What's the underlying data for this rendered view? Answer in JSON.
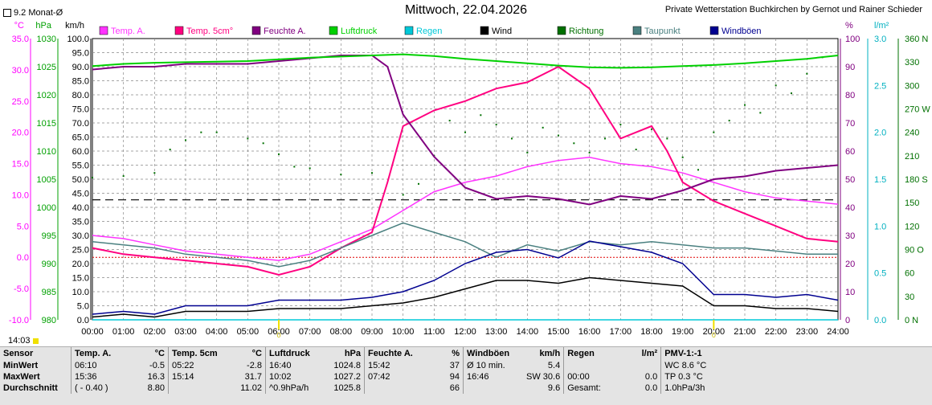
{
  "header": {
    "title": "Mittwoch, 22.04.2026",
    "credit": "Private Wetterstation Buchkirchen by Gernot und Rainer Schieder",
    "checkbox_label": "9.2 Monat-Ø",
    "current_time": "14:03"
  },
  "colors": {
    "temp_a": "#ff33ff",
    "temp_5cm": "#ff0080",
    "feuchte": "#800080",
    "luftdruck": "#00d000",
    "regen": "#00c8d8",
    "wind": "#000000",
    "richtung": "#007000",
    "taupunkt": "#4a8080",
    "windboeen": "#000090"
  },
  "chart_data": {
    "type": "line",
    "x_ticks": [
      "00:00",
      "01:00",
      "02:00",
      "03:00",
      "04:00",
      "05:00",
      "06:00",
      "07:00",
      "08:00",
      "09:00",
      "10:00",
      "11:00",
      "12:00",
      "13:00",
      "14:00",
      "15:00",
      "16:00",
      "17:00",
      "18:00",
      "19:00",
      "20:00",
      "21:00",
      "22:00",
      "23:00",
      "24:00"
    ],
    "axes": {
      "temp": {
        "unit": "°C",
        "ticks": [
          "35.0",
          "30.0",
          "25.0",
          "20.0",
          "15.0",
          "10.0",
          "5.0",
          "0.0",
          "-5.0",
          "-10.0"
        ],
        "range": [
          -10,
          35
        ]
      },
      "hpa": {
        "unit": "hPa",
        "ticks": [
          "1030",
          "1025",
          "1020",
          "1015",
          "1010",
          "1005",
          "1000",
          "995",
          "990",
          "985",
          "980"
        ],
        "range": [
          980,
          1030
        ]
      },
      "kmh": {
        "unit": "km/h",
        "ticks": [
          "100.0",
          "95.0",
          "90.0",
          "85.0",
          "80.0",
          "75.0",
          "70.0",
          "65.0",
          "60.0",
          "55.0",
          "50.0",
          "45.0",
          "40.0",
          "35.0",
          "30.0",
          "25.0",
          "20.0",
          "15.0",
          "10.0",
          "5.0",
          "0.0"
        ],
        "range": [
          0,
          100
        ]
      },
      "percent": {
        "unit": "%",
        "ticks": [
          "100",
          "90",
          "80",
          "70",
          "60",
          "50",
          "40",
          "30",
          "20",
          "10",
          "0"
        ],
        "range": [
          0,
          100
        ]
      },
      "rain": {
        "unit": "l/m²",
        "ticks": [
          "3.0",
          "2.5",
          "2.0",
          "1.5",
          "1.0",
          "0.5",
          "0.0"
        ],
        "range": [
          0,
          3
        ]
      },
      "dir": {
        "unit": "",
        "ticks": [
          "360 N",
          "330",
          "300",
          "270 W",
          "240",
          "210",
          "180 S",
          "150",
          "120",
          "90 O",
          "60",
          "30",
          "0 N"
        ],
        "range": [
          0,
          360
        ]
      }
    },
    "legend": [
      {
        "key": "temp_a",
        "label": "Temp. A."
      },
      {
        "key": "temp_5cm",
        "label": "Temp. 5cm°"
      },
      {
        "key": "feuchte",
        "label": "Feuchte A."
      },
      {
        "key": "luftdruck",
        "label": "Luftdruck"
      },
      {
        "key": "regen",
        "label": "Regen"
      },
      {
        "key": "wind",
        "label": "Wind"
      },
      {
        "key": "richtung",
        "label": "Richtung"
      },
      {
        "key": "taupunkt",
        "label": "Taupunkt"
      },
      {
        "key": "windboeen",
        "label": "Windböen"
      }
    ],
    "reference_lines": {
      "monthly_avg_temp": 9.2,
      "freezing": 0.0
    },
    "series": [
      {
        "key": "temp_a",
        "axis": "temp",
        "x": [
          0,
          1,
          2,
          3,
          4,
          5,
          6,
          7,
          8,
          9,
          10,
          11,
          12,
          13,
          14,
          15,
          16,
          17,
          18,
          19,
          20,
          21,
          22,
          23,
          24
        ],
        "y": [
          3.5,
          3.0,
          2.0,
          1.0,
          0.5,
          0.0,
          -0.5,
          0.5,
          2.5,
          4.5,
          7.5,
          10.5,
          12.0,
          13.0,
          14.5,
          15.5,
          16.0,
          15.0,
          14.5,
          13.5,
          12.0,
          10.5,
          9.5,
          9.0,
          8.5
        ]
      },
      {
        "key": "temp_5cm",
        "axis": "temp",
        "x": [
          0,
          1,
          2,
          3,
          4,
          5,
          6,
          7,
          8,
          9,
          9.5,
          10,
          11,
          12,
          13,
          14,
          15,
          16,
          17,
          18,
          18.5,
          19,
          20,
          21,
          22,
          23,
          24
        ],
        "y": [
          1.5,
          0.5,
          0.0,
          -0.5,
          -1.0,
          -1.5,
          -2.8,
          -1.5,
          1.5,
          4.0,
          12.0,
          21.0,
          23.5,
          25.0,
          27.0,
          28.0,
          30.5,
          27.0,
          19.0,
          21.0,
          17.0,
          12.0,
          9.0,
          7.0,
          5.0,
          3.0,
          2.5
        ]
      },
      {
        "key": "taupunkt",
        "axis": "temp",
        "x": [
          0,
          1,
          2,
          3,
          4,
          5,
          6,
          7,
          8,
          9,
          10,
          11,
          12,
          13,
          14,
          15,
          16,
          17,
          18,
          19,
          20,
          21,
          22,
          23,
          24
        ],
        "y": [
          2.5,
          2.0,
          1.5,
          0.5,
          0.0,
          -0.5,
          -1.5,
          -0.5,
          1.5,
          3.5,
          5.5,
          4.0,
          2.5,
          0.0,
          2.0,
          1.0,
          2.5,
          2.0,
          2.5,
          2.0,
          1.5,
          1.5,
          1.0,
          0.5,
          0.5
        ]
      },
      {
        "key": "feuchte",
        "axis": "percent",
        "x": [
          0,
          1,
          2,
          3,
          4,
          5,
          6,
          7,
          8,
          9,
          9.5,
          10,
          11,
          12,
          13,
          14,
          15,
          16,
          17,
          18,
          19,
          20,
          21,
          22,
          23,
          24
        ],
        "y": [
          89,
          90,
          90,
          91,
          91,
          91,
          92,
          93,
          94,
          94,
          90,
          73,
          58,
          47,
          43,
          44,
          43,
          41,
          44,
          43,
          46,
          50,
          51,
          53,
          54,
          55
        ]
      },
      {
        "key": "luftdruck",
        "axis": "hpa",
        "x": [
          0,
          1,
          2,
          3,
          4,
          5,
          6,
          7,
          8,
          9,
          10,
          11,
          12,
          13,
          14,
          15,
          16,
          17,
          18,
          19,
          20,
          21,
          22,
          23,
          24
        ],
        "y": [
          1025.1,
          1025.5,
          1025.7,
          1025.8,
          1025.9,
          1026.0,
          1026.3,
          1026.6,
          1026.8,
          1027.0,
          1027.2,
          1026.9,
          1026.4,
          1026.0,
          1025.6,
          1025.2,
          1024.9,
          1024.8,
          1024.9,
          1025.1,
          1025.3,
          1025.6,
          1026.0,
          1026.4,
          1027.0
        ]
      },
      {
        "key": "wind",
        "axis": "kmh",
        "x": [
          0,
          1,
          2,
          3,
          4,
          5,
          6,
          7,
          8,
          9,
          10,
          11,
          12,
          13,
          14,
          15,
          16,
          17,
          18,
          19,
          20,
          21,
          22,
          23,
          24
        ],
        "y": [
          1,
          2,
          1,
          3,
          3,
          3,
          4,
          4,
          4,
          5,
          6,
          8,
          11,
          14,
          14,
          13,
          15,
          14,
          13,
          12,
          5,
          5,
          4,
          4,
          3
        ]
      },
      {
        "key": "windboeen",
        "axis": "kmh",
        "x": [
          0,
          1,
          2,
          3,
          4,
          5,
          6,
          7,
          8,
          9,
          10,
          11,
          12,
          13,
          14,
          15,
          16,
          17,
          18,
          19,
          20,
          21,
          22,
          23,
          24
        ],
        "y": [
          2,
          3,
          2,
          5,
          5,
          5,
          7,
          7,
          7,
          8,
          10,
          14,
          20,
          24,
          25,
          22,
          28,
          26,
          24,
          20,
          9,
          9,
          8,
          9,
          7
        ]
      },
      {
        "key": "regen",
        "axis": "rain",
        "x": [
          0,
          24
        ],
        "y": [
          0,
          0
        ]
      }
    ],
    "richtung_points": {
      "axis": "dir",
      "x": [
        0,
        1,
        2,
        2.5,
        3,
        3.5,
        4,
        5,
        5.5,
        6,
        6.5,
        7,
        8,
        9,
        10,
        10.5,
        11,
        11.5,
        12,
        12.5,
        13,
        13.5,
        14,
        14.5,
        15,
        15.5,
        16,
        16.5,
        17,
        17.5,
        18,
        18.5,
        19,
        19.5,
        20,
        20.5,
        21,
        21.5,
        22,
        22.5,
        23,
        23.5
      ],
      "y": [
        182,
        184,
        188,
        218,
        230,
        240,
        240,
        232,
        226,
        212,
        196,
        194,
        186,
        188,
        160,
        174,
        210,
        255,
        240,
        262,
        250,
        232,
        214,
        246,
        236,
        226,
        214,
        232,
        250,
        218,
        244,
        232,
        208,
        192,
        240,
        255,
        275,
        265,
        300,
        290,
        315,
        336
      ]
    },
    "markers": [
      {
        "x": 6,
        "label": "0"
      },
      {
        "x": 20,
        "label": "0"
      }
    ]
  },
  "stats": {
    "columns": [
      {
        "title": "Sensor",
        "unit": ""
      },
      {
        "title": "Temp. A.",
        "unit": "°C"
      },
      {
        "title": "Temp. 5cm",
        "unit": "°C"
      },
      {
        "title": "Luftdruck",
        "unit": "hPa"
      },
      {
        "title": "Feuchte A.",
        "unit": "%"
      },
      {
        "title": "Windböen",
        "unit": "km/h"
      },
      {
        "title": "Regen",
        "unit": "l/m²"
      },
      {
        "title": "PMV-1:-1",
        "unit": ""
      }
    ],
    "rows": [
      {
        "label": "MinWert",
        "cells": [
          [
            "06:10",
            "-0.5"
          ],
          [
            "05:22",
            "-2.8"
          ],
          [
            "16:40",
            "1024.8"
          ],
          [
            "15:42",
            "37"
          ],
          [
            "Ø 10 min.",
            "5.4"
          ],
          [
            "",
            ""
          ],
          [
            "WC 8.6 °C",
            ""
          ]
        ]
      },
      {
        "label": "MaxWert",
        "cells": [
          [
            "15:36",
            "16.3"
          ],
          [
            "15:14",
            "31.7"
          ],
          [
            "10:02",
            "1027.2"
          ],
          [
            "07:42",
            "94"
          ],
          [
            "16:46",
            "SW 30.6"
          ],
          [
            "00:00",
            "0.0"
          ],
          [
            "TP 0.3 °C",
            ""
          ]
        ]
      },
      {
        "label": "Durchschnitt",
        "cells": [
          [
            "( - 0.40 )",
            "8.80"
          ],
          [
            "",
            "11.02"
          ],
          [
            "^0.9hPa/h",
            "1025.8"
          ],
          [
            "",
            "66"
          ],
          [
            "",
            "9.6"
          ],
          [
            "Gesamt:",
            "0.0"
          ],
          [
            "1.0hPa/3h",
            ""
          ]
        ]
      }
    ]
  }
}
